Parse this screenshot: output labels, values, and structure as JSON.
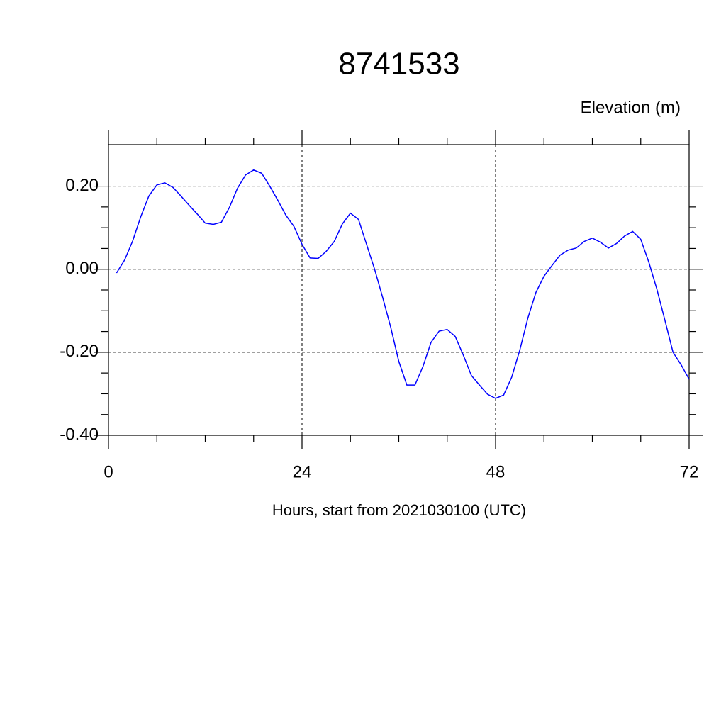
{
  "chart_data": {
    "type": "line",
    "title": "8741533",
    "y_label": "Elevation (m)",
    "x_label": "Hours, start from 2021030100 (UTC)",
    "x": [
      1,
      2,
      3,
      4,
      5,
      6,
      7,
      8,
      9,
      10,
      11,
      12,
      13,
      14,
      15,
      16,
      17,
      18,
      19,
      20,
      21,
      22,
      23,
      24,
      25,
      26,
      27,
      28,
      29,
      30,
      31,
      32,
      33,
      34,
      35,
      36,
      37,
      38,
      39,
      40,
      41,
      42,
      43,
      44,
      45,
      46,
      47,
      48,
      49,
      50,
      51,
      52,
      53,
      54,
      55,
      56,
      57,
      58,
      59,
      60,
      61,
      62,
      63,
      64,
      65,
      66,
      67,
      68,
      69,
      70,
      71,
      72
    ],
    "series": [
      {
        "name": "Elevation",
        "color": "#0000ff",
        "values": [
          -0.009,
          0.022,
          0.068,
          0.126,
          0.176,
          0.203,
          0.208,
          0.197,
          0.176,
          0.154,
          0.133,
          0.111,
          0.108,
          0.113,
          0.149,
          0.195,
          0.227,
          0.239,
          0.231,
          0.2,
          0.166,
          0.13,
          0.103,
          0.06,
          0.027,
          0.026,
          0.043,
          0.067,
          0.109,
          0.135,
          0.12,
          0.06,
          0,
          -0.068,
          -0.14,
          -0.222,
          -0.279,
          -0.279,
          -0.234,
          -0.176,
          -0.149,
          -0.145,
          -0.162,
          -0.207,
          -0.256,
          -0.279,
          -0.301,
          -0.311,
          -0.303,
          -0.26,
          -0.195,
          -0.118,
          -0.056,
          -0.017,
          0.009,
          0.034,
          0.046,
          0.051,
          0.067,
          0.075,
          0.065,
          0.051,
          0.062,
          0.08,
          0.091,
          0.072,
          0.017,
          -0.048,
          -0.123,
          -0.2,
          -0.23,
          -0.265
        ]
      }
    ],
    "xlim": [
      0,
      72
    ],
    "xticks": [
      0,
      24,
      48,
      72
    ],
    "ylim": [
      -0.4,
      0.3
    ],
    "yticks": [
      {
        "value": -0.4,
        "label": "-0.40"
      },
      {
        "value": -0.2,
        "label": "-0.20"
      },
      {
        "value": 0,
        "label": "0.00"
      },
      {
        "value": 0.2,
        "label": "0.20"
      }
    ],
    "grid": true
  }
}
